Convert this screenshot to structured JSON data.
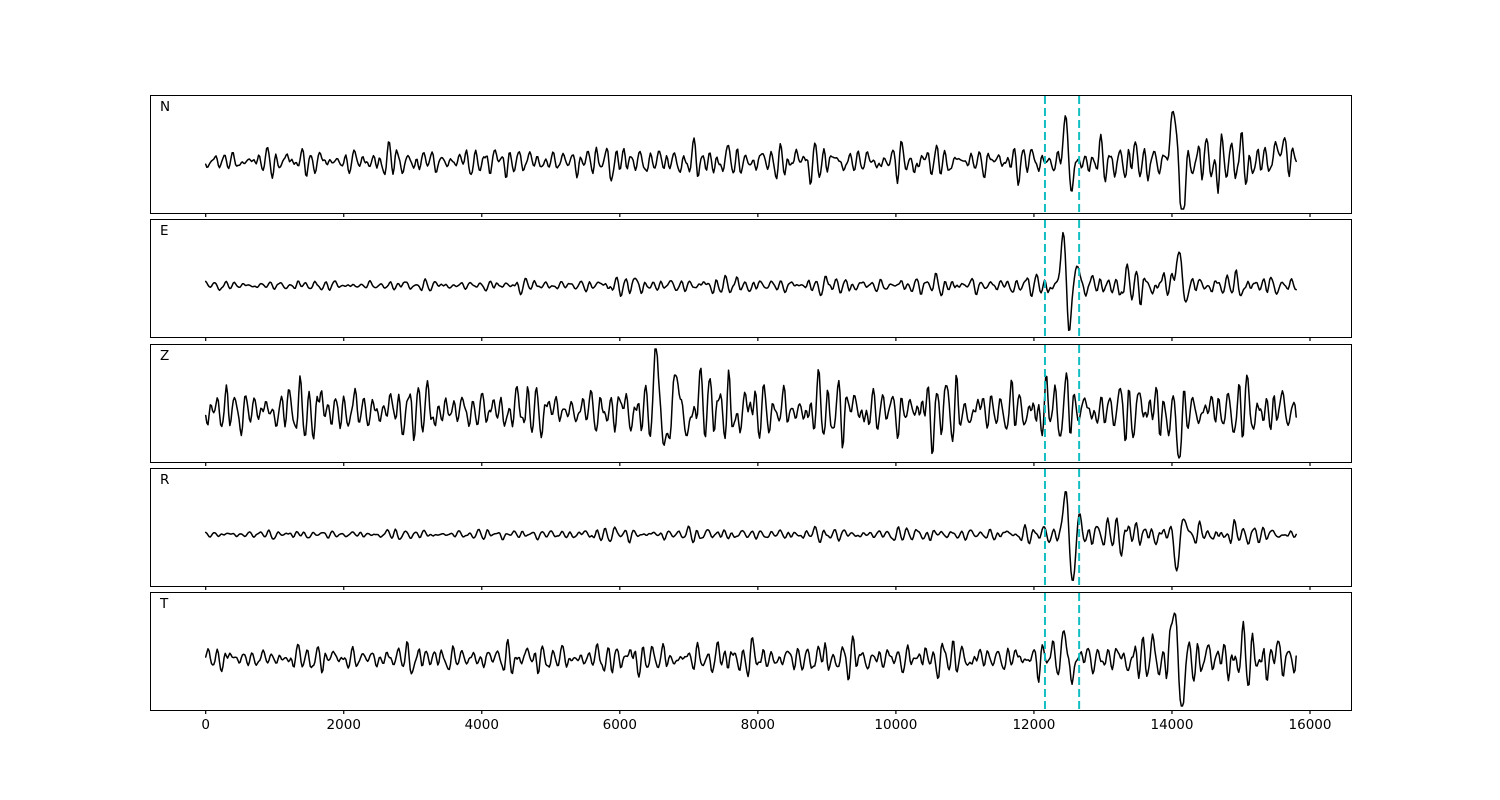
{
  "figure": {
    "background": "#ffffff",
    "axis_color": "#000000"
  },
  "chart_data": {
    "type": "line",
    "title": "",
    "xlabel": "",
    "ylabel": "",
    "grid": false,
    "legend": "none",
    "xlim": [
      -800,
      16600
    ],
    "sample_range": [
      0,
      15800
    ],
    "xticks": [
      0,
      2000,
      4000,
      6000,
      8000,
      10000,
      12000,
      14000,
      16000
    ],
    "xticklabels": [
      "0",
      "2000",
      "4000",
      "6000",
      "8000",
      "10000",
      "12000",
      "14000",
      "16000"
    ],
    "trace_color": "#000000",
    "pick_lines": {
      "color": "#12bec2",
      "style": "dashed",
      "x": [
        12160,
        12655
      ]
    },
    "series": [
      {
        "name": "N",
        "seed": 101,
        "envelope": [
          [
            0,
            7.5
          ],
          [
            2500,
            9
          ],
          [
            5600,
            9
          ],
          [
            6200,
            12
          ],
          [
            7200,
            10
          ],
          [
            8200,
            13
          ],
          [
            9000,
            10
          ],
          [
            10500,
            10.5
          ],
          [
            11800,
            9.5
          ],
          [
            12300,
            10
          ],
          [
            12800,
            13
          ],
          [
            13800,
            13
          ],
          [
            14400,
            19
          ],
          [
            15200,
            16
          ],
          [
            15800,
            17
          ]
        ],
        "spikes": [
          [
            12455,
            36,
            50
          ],
          [
            12540,
            -24,
            45
          ],
          [
            14040,
            56,
            65
          ],
          [
            14140,
            -58,
            65
          ],
          [
            15600,
            20,
            80
          ]
        ]
      },
      {
        "name": "E",
        "seed": 202,
        "envelope": [
          [
            0,
            2.8
          ],
          [
            3000,
            3.2
          ],
          [
            5200,
            4
          ],
          [
            6400,
            6
          ],
          [
            7200,
            5
          ],
          [
            8000,
            5.5
          ],
          [
            9500,
            5
          ],
          [
            11000,
            6
          ],
          [
            12200,
            6
          ],
          [
            12750,
            11
          ],
          [
            13400,
            11
          ],
          [
            14500,
            8
          ],
          [
            15800,
            5.5
          ]
        ],
        "spikes": [
          [
            12430,
            52,
            48
          ],
          [
            12520,
            -46,
            52
          ],
          [
            12615,
            30,
            42
          ],
          [
            14090,
            36,
            55
          ],
          [
            14185,
            -14,
            45
          ]
        ]
      },
      {
        "name": "Z",
        "seed": 303,
        "envelope": [
          [
            0,
            15
          ],
          [
            1500,
            18
          ],
          [
            3000,
            16
          ],
          [
            4500,
            15
          ],
          [
            6200,
            15
          ],
          [
            6700,
            22
          ],
          [
            7600,
            22
          ],
          [
            8800,
            19
          ],
          [
            10500,
            20
          ],
          [
            12500,
            19
          ],
          [
            14000,
            19
          ],
          [
            15800,
            17
          ]
        ],
        "spikes": [
          [
            6540,
            48,
            50
          ],
          [
            6650,
            -38,
            52
          ],
          [
            6820,
            34,
            48
          ],
          [
            6995,
            -26,
            50
          ],
          [
            7185,
            28,
            55
          ],
          [
            12480,
            14,
            45
          ],
          [
            14090,
            -40,
            52
          ]
        ]
      },
      {
        "name": "R",
        "seed": 404,
        "envelope": [
          [
            0,
            2.5
          ],
          [
            4000,
            3
          ],
          [
            6300,
            4.5
          ],
          [
            7500,
            4
          ],
          [
            9000,
            4
          ],
          [
            11500,
            4.5
          ],
          [
            12250,
            5.5
          ],
          [
            12850,
            10
          ],
          [
            13600,
            10
          ],
          [
            14800,
            7
          ],
          [
            15800,
            5
          ]
        ],
        "spikes": [
          [
            12465,
            46,
            50
          ],
          [
            12560,
            -52,
            52
          ],
          [
            12655,
            20,
            40
          ],
          [
            14080,
            -32,
            50
          ],
          [
            14175,
            22,
            45
          ]
        ]
      },
      {
        "name": "T",
        "seed": 505,
        "envelope": [
          [
            0,
            6.5
          ],
          [
            2500,
            8.5
          ],
          [
            5000,
            9.5
          ],
          [
            7500,
            10.5
          ],
          [
            9500,
            11
          ],
          [
            11500,
            10
          ],
          [
            12300,
            10
          ],
          [
            12900,
            12
          ],
          [
            13700,
            13
          ],
          [
            14400,
            19
          ],
          [
            15300,
            16
          ],
          [
            15800,
            15
          ]
        ],
        "spikes": [
          [
            12450,
            26,
            45
          ],
          [
            12540,
            -20,
            45
          ],
          [
            14040,
            54,
            58
          ],
          [
            14130,
            -52,
            60
          ]
        ]
      }
    ]
  }
}
